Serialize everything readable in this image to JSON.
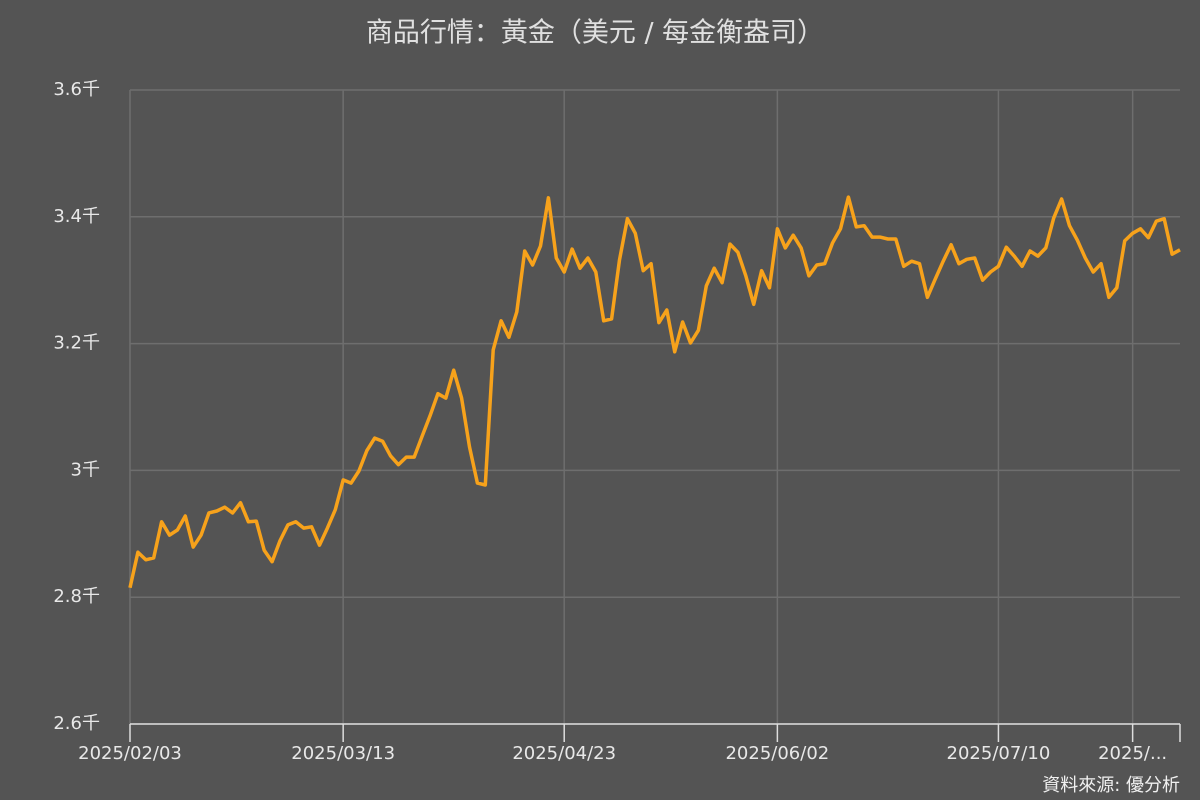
{
  "chart_data": {
    "type": "line",
    "title": "商品行情：黃金（美元 / 每金衡盎司）",
    "source": "資料來源: 優分析",
    "categories": [
      "2025/02/03",
      null,
      null,
      null,
      null,
      null,
      null,
      null,
      null,
      null,
      null,
      null,
      null,
      null,
      null,
      null,
      null,
      null,
      null,
      null,
      null,
      null,
      null,
      null,
      null,
      null,
      null,
      "2025/03/13",
      null,
      null,
      null,
      null,
      null,
      null,
      null,
      null,
      null,
      null,
      null,
      null,
      null,
      null,
      null,
      null,
      null,
      null,
      null,
      null,
      null,
      null,
      null,
      null,
      null,
      null,
      null,
      "2025/04/23",
      null,
      null,
      null,
      null,
      null,
      null,
      null,
      null,
      null,
      null,
      null,
      null,
      null,
      null,
      null,
      null,
      null,
      null,
      null,
      null,
      null,
      null,
      null,
      null,
      null,
      null,
      "2025/06/02",
      null,
      null,
      null,
      null,
      null,
      null,
      null,
      null,
      null,
      null,
      null,
      null,
      null,
      null,
      null,
      null,
      null,
      null,
      null,
      null,
      null,
      null,
      null,
      null,
      null,
      null,
      null,
      "2025/07/10",
      null,
      null,
      null,
      null,
      null,
      null,
      null,
      null,
      null,
      null,
      null,
      null,
      null,
      null,
      null,
      null,
      "2025/...",
      null,
      null,
      null,
      null,
      null,
      null
    ],
    "series": [
      {
        "name": "黃金",
        "color": "#f7a21b",
        "values": [
          2.815,
          2.871,
          2.859,
          2.862,
          2.919,
          2.898,
          2.906,
          2.928,
          2.879,
          2.898,
          2.933,
          2.936,
          2.942,
          2.933,
          2.949,
          2.919,
          2.92,
          2.874,
          2.856,
          2.889,
          2.914,
          2.919,
          2.909,
          2.911,
          2.882,
          2.909,
          2.938,
          2.985,
          2.98,
          2.999,
          3.031,
          3.051,
          3.046,
          3.023,
          3.009,
          3.021,
          3.021,
          3.054,
          3.086,
          3.121,
          3.114,
          3.158,
          3.114,
          3.037,
          2.98,
          2.977,
          3.19,
          3.236,
          3.21,
          3.25,
          3.346,
          3.324,
          3.354,
          3.43,
          3.335,
          3.313,
          3.349,
          3.319,
          3.335,
          3.313,
          3.236,
          3.239,
          3.332,
          3.397,
          3.374,
          3.315,
          3.326,
          3.233,
          3.253,
          3.187,
          3.234,
          3.201,
          3.221,
          3.291,
          3.319,
          3.296,
          3.357,
          3.344,
          3.307,
          3.262,
          3.315,
          3.288,
          3.381,
          3.351,
          3.371,
          3.351,
          3.307,
          3.324,
          3.326,
          3.359,
          3.381,
          3.431,
          3.384,
          3.386,
          3.368,
          3.368,
          3.365,
          3.365,
          3.322,
          3.33,
          3.326,
          3.273,
          3.302,
          3.33,
          3.356,
          3.326,
          3.333,
          3.335,
          3.3,
          3.313,
          3.322,
          3.352,
          3.338,
          3.322,
          3.346,
          3.338,
          3.351,
          3.398,
          3.428,
          3.386,
          3.363,
          3.335,
          3.313,
          3.326,
          3.273,
          3.288,
          3.362,
          3.374,
          3.381,
          3.367,
          3.393,
          3.397,
          3.341,
          3.348
        ]
      }
    ],
    "ylim": [
      2.6,
      3.6
    ],
    "yticks": [
      {
        "value": 2.6,
        "label": "2.6千"
      },
      {
        "value": 2.8,
        "label": "2.8千"
      },
      {
        "value": 3,
        "label": "3千"
      },
      {
        "value": 3.2,
        "label": "3.2千"
      },
      {
        "value": 3.4,
        "label": "3.4千"
      },
      {
        "value": 3.6,
        "label": "3.6千"
      }
    ],
    "grid": true
  }
}
